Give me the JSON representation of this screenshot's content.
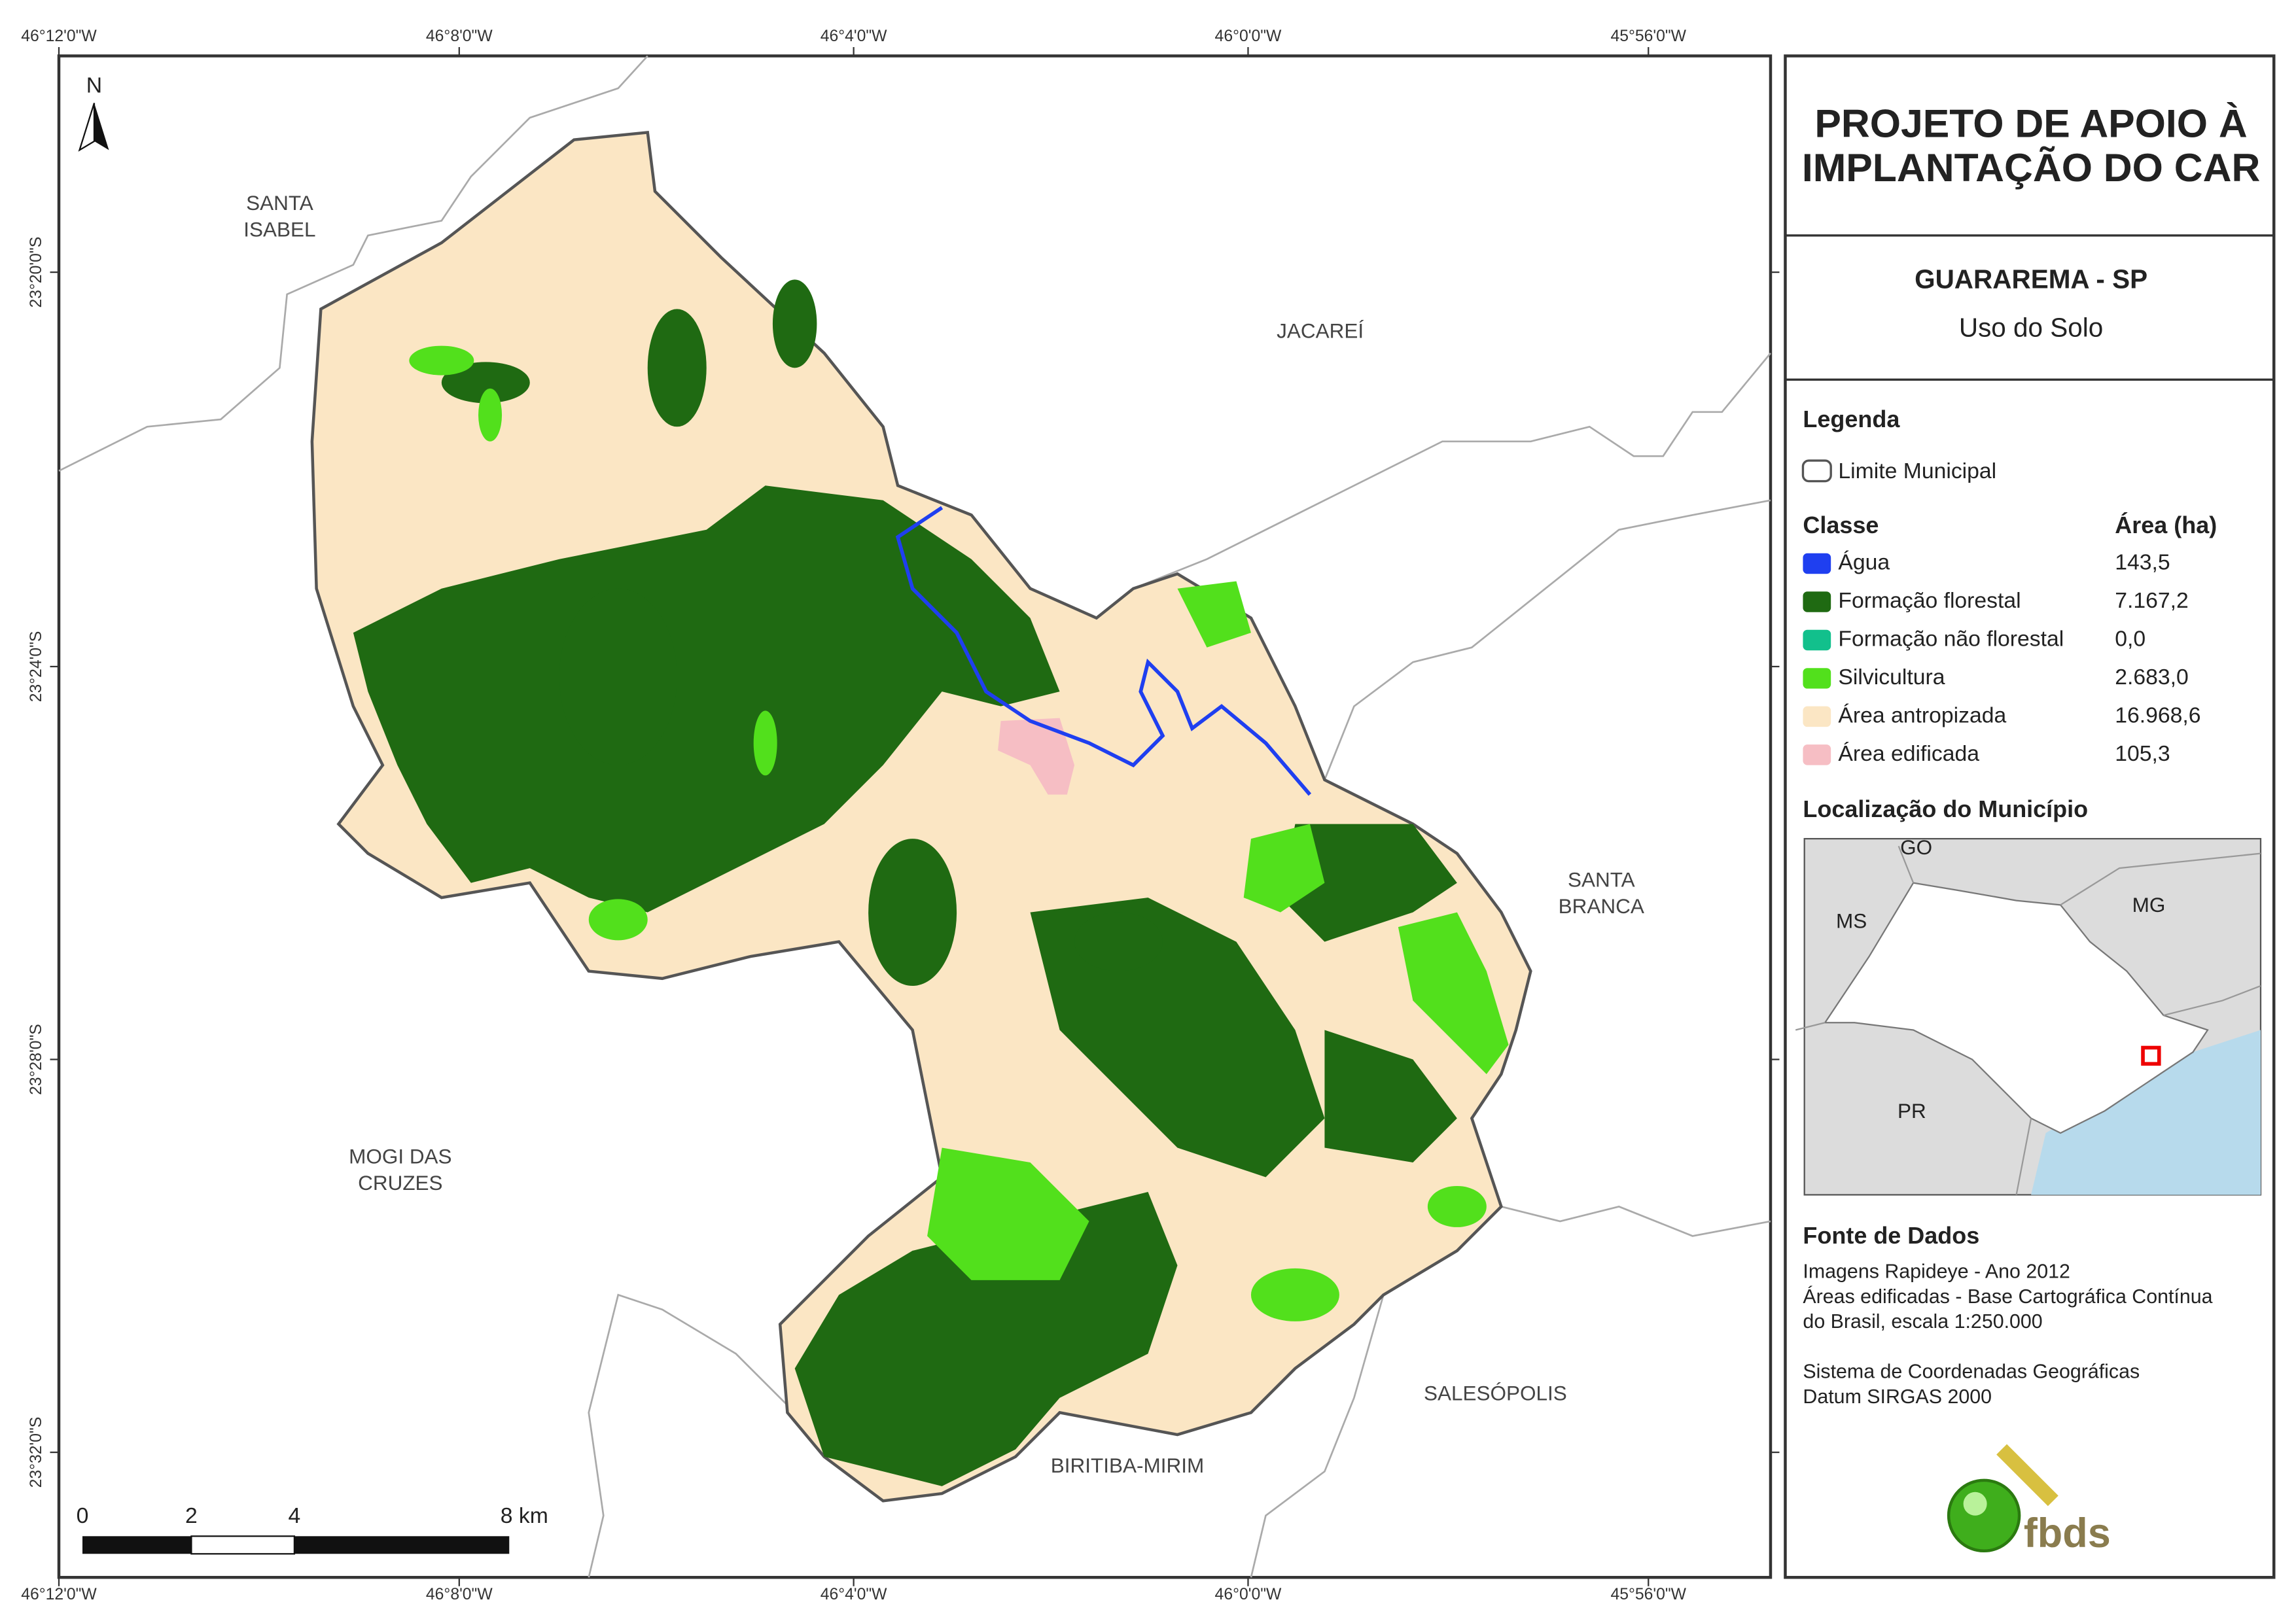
{
  "map": {
    "north": "N",
    "lon_labels": [
      "46°12'0\"W",
      "46°8'0\"W",
      "46°4'0\"W",
      "46°0'0\"W",
      "45°56'0\"W"
    ],
    "lat_labels": [
      "23°20'0\"S",
      "23°24'0\"S",
      "23°28'0\"S",
      "23°32'0\"S"
    ],
    "neighbors": [
      [
        "SANTA",
        "ISABEL"
      ],
      [
        "JACAREÍ"
      ],
      [
        "SANTA",
        "BRANCA"
      ],
      [
        "MOGI DAS",
        "CRUZES"
      ],
      [
        "SALESÓPOLIS"
      ],
      [
        "BIRITIBA-MIRIM"
      ]
    ],
    "scale_labels": [
      "0",
      "2",
      "4",
      "8 km"
    ]
  },
  "panel": {
    "title": [
      "PROJETO DE APOIO À",
      "IMPLANTAÇÃO DO CAR"
    ],
    "municipality": "GUARAREMA - SP",
    "theme": "Uso do Solo",
    "legend": {
      "heading": "Legenda",
      "boundary": "Limite Municipal",
      "class_header": "Classe",
      "area_header": "Área (ha)",
      "classes": [
        {
          "name": "Água",
          "color": "#1f3ff0",
          "area": "143,5"
        },
        {
          "name": "Formação florestal",
          "color": "#1f6a12",
          "area": "7.167,2"
        },
        {
          "name": "Formação não florestal",
          "color": "#12c08c",
          "area": "0,0"
        },
        {
          "name": "Silvicultura",
          "color": "#52e01c",
          "area": "2.683,0"
        },
        {
          "name": "Área antropizada",
          "color": "#fbe6c4",
          "area": "16.968,6"
        },
        {
          "name": "Área edificada",
          "color": "#f6bec4",
          "area": "105,3"
        }
      ]
    },
    "location": {
      "heading": "Localização do Município",
      "states": [
        "GO",
        "MS",
        "MG",
        "PR"
      ]
    },
    "sources": {
      "heading": "Fonte de Dados",
      "lines": [
        "Imagens Rapideye - Ano 2012",
        "Áreas edificadas - Base Cartográfica Contínua",
        "do Brasil, escala 1:250.000",
        "",
        "Sistema de Coordenadas Geográficas",
        "Datum SIRGAS 2000"
      ]
    },
    "logo": "fbds"
  }
}
